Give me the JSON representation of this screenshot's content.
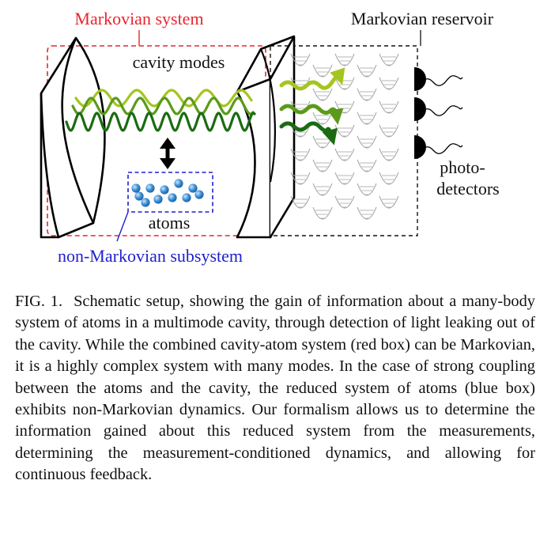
{
  "figure": {
    "labels": {
      "markovian_system": "Markovian system",
      "markovian_reservoir": "Markovian reservoir",
      "cavity_modes": "cavity modes",
      "atoms": "atoms",
      "non_markovian_subsystem": "non-Markovian subsystem",
      "photo_line1": "photo-",
      "photo_line2": "detectors"
    },
    "colors": {
      "markovian_system_box": "#e8262e",
      "non_markovian_box": "#1f1fcf",
      "mode_light": "#a4c520",
      "mode_mid": "#5c9a1a",
      "mode_dark": "#1c6b13",
      "atom": "#3a8fd6",
      "detector": "#000000"
    },
    "icons": {
      "mirror": "curved-mirror-icon",
      "atom": "atom-sphere-icon",
      "arrow": "double-arrow-icon",
      "detector": "photodetector-icon",
      "reservoir_level": "energy-level-icon"
    }
  },
  "caption": {
    "label": "FIG. 1.",
    "text": "Schematic setup, showing the gain of information about a many-body system of atoms in a multimode cavity, through detection of light leaking out of the cavity. While the combined cavity-atom system (red box) can be Markovian, it is a highly complex system with many modes. In the case of strong coupling between the atoms and the cavity, the reduced system of atoms (blue box) exhibits non-Markovian dynamics. Our formalism allows us to determine the information gained about this reduced system from the measurements, determining the measurement-conditioned dynamics, and allowing for continuous feedback."
  }
}
